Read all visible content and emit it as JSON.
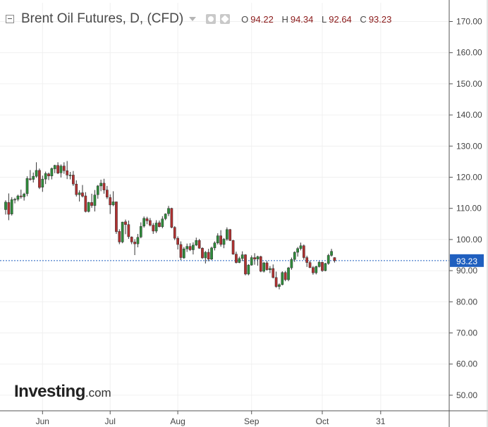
{
  "header": {
    "title": "Brent Oil Futures, D, (CFD)",
    "ohlc": [
      {
        "label": "O",
        "value": "94.22"
      },
      {
        "label": "H",
        "value": "94.34"
      },
      {
        "label": "L",
        "value": "92.64"
      },
      {
        "label": "C",
        "value": "93.23"
      }
    ]
  },
  "logo": {
    "main": "Investing",
    "suffix": ".com"
  },
  "chart_data": {
    "type": "candlestick",
    "title": "Brent Oil Futures, D, (CFD)",
    "price_scale": {
      "ylim": [
        45,
        176
      ],
      "tick_labels": [
        "170.00",
        "160.00",
        "150.00",
        "140.00",
        "130.00",
        "120.00",
        "110.00",
        "100.00",
        "90.00",
        "80.00",
        "70.00",
        "60.00",
        "50.00"
      ],
      "tick_values": [
        170,
        160,
        150,
        140,
        130,
        120,
        110,
        100,
        90,
        80,
        70,
        60,
        50
      ]
    },
    "time_axis": {
      "labels": [
        {
          "label": "Jun",
          "bar": 12
        },
        {
          "label": "Jul",
          "bar": 34
        },
        {
          "label": "Aug",
          "bar": 56
        },
        {
          "label": "Sep",
          "bar": 80
        },
        {
          "label": "Oct",
          "bar": 103
        },
        {
          "label": "31",
          "bar": 122
        }
      ],
      "total_slots": 143
    },
    "last_price": {
      "value": 93.23,
      "label": "93.23",
      "color": "#1f5fbf"
    },
    "colors": {
      "up": "#2e8b3a",
      "down": "#b03030",
      "grid": "#f0f0f0"
    },
    "candles": [
      [
        109.6,
        112.6,
        108.0,
        112.0
      ],
      [
        111.9,
        114.8,
        106.2,
        108.1
      ],
      [
        108.2,
        113.6,
        107.7,
        112.8
      ],
      [
        112.7,
        113.4,
        111.6,
        112.9
      ],
      [
        112.9,
        114.4,
        112.3,
        114.0
      ],
      [
        114.0,
        116.0,
        113.1,
        113.7
      ],
      [
        113.7,
        115.0,
        112.5,
        114.6
      ],
      [
        114.7,
        120.3,
        113.9,
        119.6
      ],
      [
        119.5,
        122.3,
        118.9,
        119.3
      ],
      [
        119.3,
        121.5,
        118.3,
        120.3
      ],
      [
        120.3,
        124.8,
        119.8,
        122.2
      ],
      [
        122.2,
        122.8,
        116.2,
        116.7
      ],
      [
        116.8,
        120.5,
        115.3,
        119.4
      ],
      [
        119.4,
        121.8,
        117.8,
        121.2
      ],
      [
        121.1,
        121.5,
        119.1,
        120.4
      ],
      [
        120.4,
        123.1,
        119.3,
        122.8
      ],
      [
        122.7,
        124.0,
        121.3,
        123.8
      ],
      [
        123.8,
        124.8,
        121.0,
        121.3
      ],
      [
        121.4,
        124.1,
        119.9,
        123.6
      ],
      [
        123.6,
        124.8,
        121.1,
        122.1
      ],
      [
        122.1,
        125.2,
        119.4,
        120.7
      ],
      [
        120.7,
        121.7,
        119.3,
        120.7
      ],
      [
        120.7,
        122.0,
        117.2,
        117.8
      ],
      [
        117.8,
        119.0,
        113.8,
        114.4
      ],
      [
        114.4,
        115.8,
        112.2,
        115.0
      ],
      [
        115.0,
        117.5,
        113.5,
        113.9
      ],
      [
        114.0,
        115.2,
        108.7,
        109.0
      ],
      [
        109.0,
        112.1,
        108.7,
        111.9
      ],
      [
        111.9,
        114.7,
        110.2,
        110.9
      ],
      [
        110.9,
        115.9,
        109.0,
        114.3
      ],
      [
        114.4,
        117.5,
        113.1,
        117.2
      ],
      [
        117.2,
        119.2,
        115.5,
        118.1
      ],
      [
        118.1,
        119.5,
        114.7,
        115.9
      ],
      [
        115.9,
        117.2,
        113.0,
        113.6
      ],
      [
        113.5,
        114.5,
        108.2,
        111.1
      ],
      [
        111.1,
        115.5,
        110.7,
        112.1
      ],
      [
        112.1,
        112.2,
        101.8,
        102.5
      ],
      [
        102.6,
        103.3,
        98.5,
        99.2
      ],
      [
        99.2,
        105.7,
        98.8,
        105.6
      ],
      [
        105.7,
        106.4,
        101.7,
        104.8
      ],
      [
        104.8,
        106.1,
        100.2,
        100.9
      ],
      [
        100.8,
        101.0,
        98.5,
        99.2
      ],
      [
        99.2,
        100.1,
        95.0,
        98.6
      ],
      [
        98.6,
        101.8,
        97.5,
        100.7
      ],
      [
        100.8,
        105.5,
        100.4,
        104.2
      ],
      [
        104.3,
        107.4,
        103.8,
        106.8
      ],
      [
        106.7,
        107.3,
        104.9,
        106.0
      ],
      [
        106.1,
        106.9,
        104.2,
        104.6
      ],
      [
        104.6,
        105.3,
        101.8,
        102.7
      ],
      [
        102.7,
        106.2,
        102.1,
        105.3
      ],
      [
        105.4,
        106.1,
        103.9,
        104.1
      ],
      [
        104.1,
        107.5,
        103.6,
        106.6
      ],
      [
        106.7,
        108.4,
        106.2,
        108.2
      ],
      [
        108.3,
        110.8,
        107.5,
        110.0
      ],
      [
        110.0,
        110.2,
        103.6,
        103.9
      ],
      [
        103.9,
        104.3,
        99.8,
        100.4
      ],
      [
        100.4,
        101.0,
        96.8,
        98.4
      ],
      [
        98.4,
        99.4,
        93.4,
        94.2
      ],
      [
        94.1,
        97.6,
        93.8,
        97.0
      ],
      [
        97.0,
        98.7,
        96.0,
        97.8
      ],
      [
        97.8,
        98.8,
        96.3,
        96.7
      ],
      [
        96.7,
        99.1,
        95.2,
        98.2
      ],
      [
        98.2,
        100.6,
        97.9,
        99.7
      ],
      [
        99.7,
        100.2,
        97.0,
        97.2
      ],
      [
        97.2,
        97.5,
        93.8,
        94.1
      ],
      [
        94.1,
        96.3,
        92.3,
        95.9
      ],
      [
        95.9,
        97.0,
        93.0,
        93.7
      ],
      [
        93.7,
        97.7,
        93.4,
        97.3
      ],
      [
        97.3,
        99.4,
        96.5,
        98.9
      ],
      [
        98.9,
        102.0,
        98.4,
        101.2
      ],
      [
        101.2,
        103.0,
        97.7,
        98.4
      ],
      [
        98.4,
        100.5,
        97.2,
        100.1
      ],
      [
        100.1,
        103.9,
        99.6,
        103.2
      ],
      [
        103.2,
        103.4,
        99.5,
        99.7
      ],
      [
        99.7,
        99.9,
        95.1,
        95.3
      ],
      [
        95.3,
        96.1,
        92.3,
        92.6
      ],
      [
        92.6,
        94.5,
        92.4,
        93.9
      ],
      [
        93.9,
        96.2,
        93.1,
        95.1
      ],
      [
        95.1,
        95.3,
        88.5,
        88.9
      ],
      [
        88.9,
        92.1,
        88.5,
        91.8
      ],
      [
        91.8,
        94.9,
        91.6,
        94.2
      ],
      [
        94.2,
        95.6,
        91.9,
        93.7
      ],
      [
        93.7,
        94.8,
        91.6,
        94.5
      ],
      [
        94.5,
        94.8,
        89.5,
        89.8
      ],
      [
        89.8,
        92.8,
        89.4,
        92.5
      ],
      [
        92.5,
        93.1,
        90.0,
        90.3
      ],
      [
        90.3,
        91.5,
        89.2,
        90.7
      ],
      [
        90.7,
        92.0,
        87.5,
        87.8
      ],
      [
        87.8,
        89.7,
        84.5,
        84.9
      ],
      [
        84.9,
        85.9,
        84.0,
        85.5
      ],
      [
        85.5,
        89.8,
        85.3,
        89.4
      ],
      [
        89.4,
        89.9,
        86.6,
        87.1
      ],
      [
        87.1,
        91.2,
        86.6,
        90.9
      ],
      [
        90.9,
        94.2,
        90.3,
        93.6
      ],
      [
        93.6,
        96.2,
        92.8,
        95.9
      ],
      [
        95.9,
        97.6,
        94.5,
        97.1
      ],
      [
        97.1,
        99.0,
        96.5,
        98.0
      ],
      [
        98.0,
        98.4,
        93.5,
        94.2
      ],
      [
        94.2,
        94.8,
        91.2,
        92.6
      ],
      [
        92.6,
        93.2,
        90.8,
        91.0
      ],
      [
        91.0,
        91.5,
        88.7,
        89.3
      ],
      [
        89.3,
        91.6,
        88.8,
        91.3
      ],
      [
        91.3,
        93.1,
        91.0,
        92.7
      ],
      [
        92.7,
        92.9,
        89.6,
        90.0
      ],
      [
        90.0,
        92.5,
        89.8,
        92.3
      ],
      [
        92.3,
        95.4,
        91.9,
        94.9
      ],
      [
        94.9,
        97.0,
        94.5,
        96.2
      ],
      [
        94.2,
        94.3,
        92.6,
        93.2
      ]
    ]
  }
}
